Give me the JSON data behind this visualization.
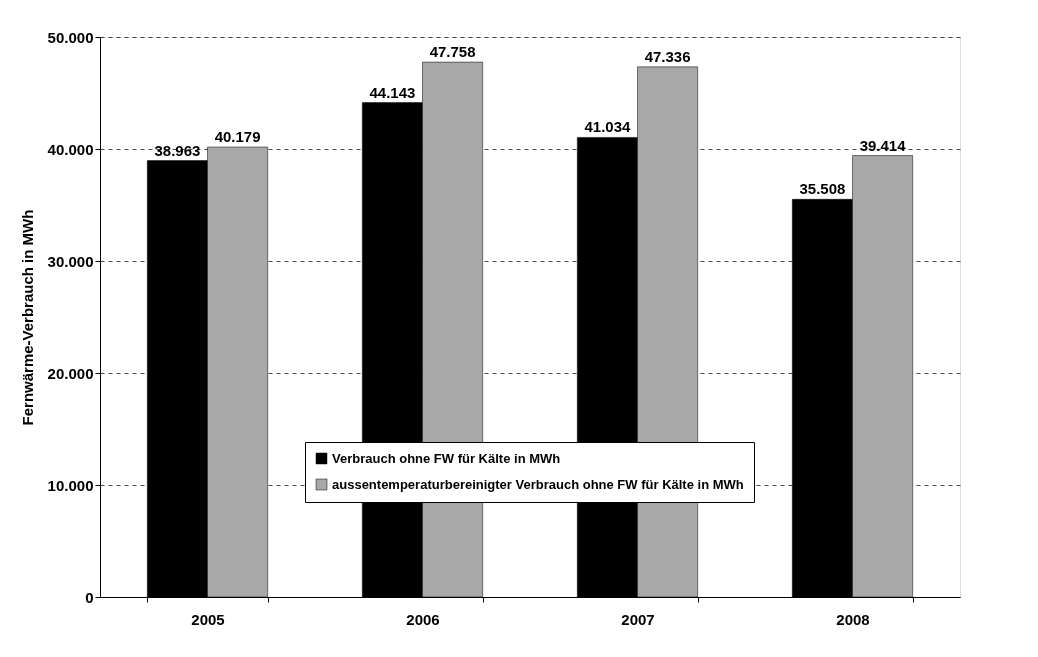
{
  "chart_data": {
    "type": "bar",
    "ylabel": "Fernwärme-Verbrauch in MWh",
    "categories": [
      "2005",
      "2006",
      "2007",
      "2008"
    ],
    "series": [
      {
        "name": "Verbrauch ohne FW für Kälte in MWh",
        "color": "#000000",
        "values": [
          38963,
          44143,
          41034,
          35508
        ],
        "value_labels": [
          "38.963",
          "44.143",
          "41.034",
          "35.508"
        ]
      },
      {
        "name": "aussentemperaturbereinigter Verbrauch ohne FW für Kälte in MWh",
        "color": "#a8a8a8",
        "values": [
          40179,
          47758,
          47336,
          39414
        ],
        "value_labels": [
          "40.179",
          "47.758",
          "47.336",
          "39.414"
        ]
      }
    ],
    "ylim": [
      0,
      50000
    ],
    "yticks": [
      {
        "value": 0,
        "label": "0"
      },
      {
        "value": 10000,
        "label": "10.000"
      },
      {
        "value": 20000,
        "label": "20.000"
      },
      {
        "value": 30000,
        "label": "30.000"
      },
      {
        "value": 40000,
        "label": "40.000"
      },
      {
        "value": 50000,
        "label": "50.000"
      }
    ],
    "grid": "y",
    "line_style": "dashed",
    "legend": "bottom"
  }
}
